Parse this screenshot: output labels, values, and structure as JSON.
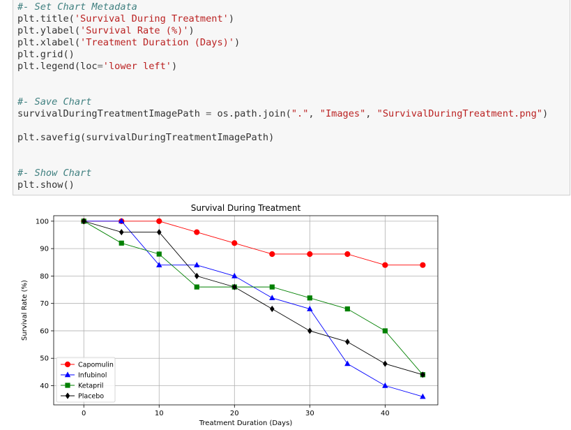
{
  "code_cell": {
    "lines": [
      {
        "segments": [
          {
            "text": "#- Set Chart Metadata",
            "cls": "cm"
          }
        ]
      },
      {
        "segments": [
          {
            "text": "plt.title(",
            "cls": ""
          },
          {
            "text": "'Survival During Treatment'",
            "cls": "str"
          },
          {
            "text": ")",
            "cls": ""
          }
        ]
      },
      {
        "segments": [
          {
            "text": "plt.ylabel(",
            "cls": ""
          },
          {
            "text": "'Survival Rate (%)'",
            "cls": "str"
          },
          {
            "text": ")",
            "cls": ""
          }
        ]
      },
      {
        "segments": [
          {
            "text": "plt.xlabel(",
            "cls": ""
          },
          {
            "text": "'Treatment Duration (Days)'",
            "cls": "str"
          },
          {
            "text": ")",
            "cls": ""
          }
        ]
      },
      {
        "segments": [
          {
            "text": "plt.grid()",
            "cls": ""
          }
        ]
      },
      {
        "segments": [
          {
            "text": "plt.legend(loc",
            "cls": ""
          },
          {
            "text": "=",
            "cls": "op"
          },
          {
            "text": "'lower left'",
            "cls": "str"
          },
          {
            "text": ")",
            "cls": ""
          }
        ]
      },
      {
        "segments": []
      },
      {
        "segments": []
      },
      {
        "segments": [
          {
            "text": "#- Save Chart",
            "cls": "cm"
          }
        ]
      },
      {
        "segments": [
          {
            "text": "survivalDuringTreatmentImagePath ",
            "cls": ""
          },
          {
            "text": "=",
            "cls": "op"
          },
          {
            "text": " os.path.join(",
            "cls": ""
          },
          {
            "text": "\".\"",
            "cls": "str"
          },
          {
            "text": ", ",
            "cls": ""
          },
          {
            "text": "\"Images\"",
            "cls": "str"
          },
          {
            "text": ", ",
            "cls": ""
          },
          {
            "text": "\"SurvivalDuringTreatment.png\"",
            "cls": "str"
          },
          {
            "text": ")",
            "cls": ""
          }
        ]
      },
      {
        "segments": []
      },
      {
        "segments": [
          {
            "text": "plt.savefig(survivalDuringTreatmentImagePath)",
            "cls": ""
          }
        ]
      },
      {
        "segments": []
      },
      {
        "segments": []
      },
      {
        "segments": [
          {
            "text": "#- Show Chart",
            "cls": "cm"
          }
        ]
      },
      {
        "segments": [
          {
            "text": "plt.show()",
            "cls": ""
          }
        ]
      }
    ]
  },
  "chart_data": {
    "type": "line",
    "title": "Survival During Treatment",
    "xlabel": "Treatment Duration (Days)",
    "ylabel": "Survival Rate (%)",
    "xlim": [
      -4,
      47
    ],
    "ylim": [
      33,
      102
    ],
    "xticks": [
      0,
      10,
      20,
      30,
      40
    ],
    "yticks": [
      40,
      50,
      60,
      70,
      80,
      90,
      100
    ],
    "grid": true,
    "legend_loc": "lower left",
    "x": [
      0,
      5,
      10,
      15,
      20,
      25,
      30,
      35,
      40,
      45
    ],
    "series": [
      {
        "name": "Capomulin",
        "color": "#ff0000",
        "marker": "circle",
        "values": [
          100,
          100,
          100,
          96,
          92,
          88,
          88,
          88,
          84,
          84
        ]
      },
      {
        "name": "Infubinol",
        "color": "#0000ff",
        "marker": "triangle",
        "values": [
          100,
          100,
          84,
          84,
          80,
          72,
          68,
          48,
          40,
          36
        ]
      },
      {
        "name": "Ketapril",
        "color": "#008000",
        "marker": "square",
        "values": [
          100,
          92,
          88,
          76,
          76,
          76,
          72,
          68,
          60,
          44
        ]
      },
      {
        "name": "Placebo",
        "color": "#000000",
        "marker": "diamond",
        "values": [
          100,
          96,
          96,
          80,
          76,
          68,
          60,
          56,
          48,
          44
        ]
      }
    ]
  }
}
